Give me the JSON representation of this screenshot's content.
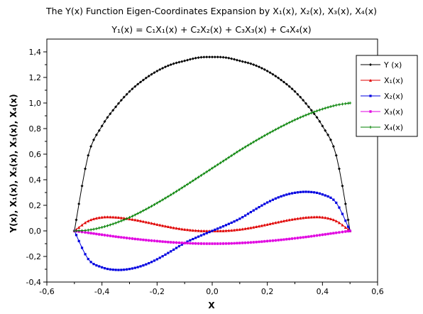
{
  "chart_data": {
    "type": "line",
    "title_line1": "The Y(x) Function Eigen-Coordinates Expansion by X₁(x), X₂(x), X₃(x), X₄(x)",
    "title_line2": "Y₁(x) = C₁X₁(x) + C₂X₂(x) + C₃X₃(x) + C₄X₄(x)",
    "xlabel": "X",
    "ylabel": "Y(x), X₁(x), X₂(x), X₃(x), X₄(x)",
    "xlim": [
      -0.6,
      0.6
    ],
    "ylim": [
      -0.4,
      1.5
    ],
    "xticks": [
      "-0,6",
      "-0,4",
      "-0,2",
      "0,0",
      "0,2",
      "0,4",
      "0,6"
    ],
    "xtick_values": [
      -0.6,
      -0.4,
      -0.2,
      0.0,
      0.2,
      0.4,
      0.6
    ],
    "yticks": [
      "-0,4",
      "-0,2",
      "0,0",
      "0,2",
      "0,4",
      "0,6",
      "0,8",
      "1,0",
      "1,2",
      "1,4"
    ],
    "ytick_values": [
      -0.4,
      -0.2,
      0.0,
      0.2,
      0.4,
      0.6,
      0.8,
      1.0,
      1.2,
      1.4
    ],
    "grid": false,
    "legend_position": "top-right",
    "x": [
      -0.5,
      -0.45,
      -0.4,
      -0.35,
      -0.3,
      -0.25,
      -0.2,
      -0.15,
      -0.1,
      -0.05,
      0.0,
      0.05,
      0.1,
      0.15,
      0.2,
      0.25,
      0.3,
      0.35,
      0.4,
      0.45,
      0.5
    ],
    "series": [
      {
        "name": "Y (x)",
        "color": "#000000",
        "marker": "diamond",
        "values": [
          0.0,
          0.59,
          0.82,
          0.97,
          1.09,
          1.18,
          1.25,
          1.3,
          1.33,
          1.355,
          1.36,
          1.355,
          1.33,
          1.3,
          1.25,
          1.18,
          1.09,
          0.97,
          0.82,
          0.59,
          0.0
        ]
      },
      {
        "name": "X₁(x)",
        "color": "#e00000",
        "marker": "triangle",
        "values": [
          0.0,
          0.078,
          0.107,
          0.107,
          0.094,
          0.074,
          0.051,
          0.029,
          0.012,
          0.002,
          0.0,
          0.002,
          0.012,
          0.029,
          0.051,
          0.074,
          0.094,
          0.107,
          0.107,
          0.078,
          0.0
        ]
      },
      {
        "name": "X₂(x)",
        "color": "#0000e0",
        "marker": "square",
        "values": [
          0.0,
          -0.22,
          -0.285,
          -0.305,
          -0.298,
          -0.27,
          -0.222,
          -0.16,
          -0.095,
          -0.045,
          0.0,
          0.045,
          0.095,
          0.16,
          0.222,
          0.27,
          0.298,
          0.305,
          0.285,
          0.22,
          0.0
        ]
      },
      {
        "name": "X₃(x)",
        "color": "#e000e0",
        "marker": "star",
        "values": [
          0.0,
          -0.015,
          -0.03,
          -0.045,
          -0.058,
          -0.07,
          -0.08,
          -0.089,
          -0.095,
          -0.099,
          -0.1,
          -0.099,
          -0.095,
          -0.089,
          -0.08,
          -0.07,
          -0.058,
          -0.045,
          -0.03,
          -0.015,
          0.0
        ]
      },
      {
        "name": "X₄(x)",
        "color": "#008000",
        "marker": "plus",
        "values": [
          0.0,
          0.006,
          0.028,
          0.062,
          0.105,
          0.158,
          0.218,
          0.282,
          0.35,
          0.42,
          0.49,
          0.56,
          0.63,
          0.695,
          0.757,
          0.815,
          0.868,
          0.914,
          0.953,
          0.983,
          1.0
        ]
      }
    ]
  }
}
